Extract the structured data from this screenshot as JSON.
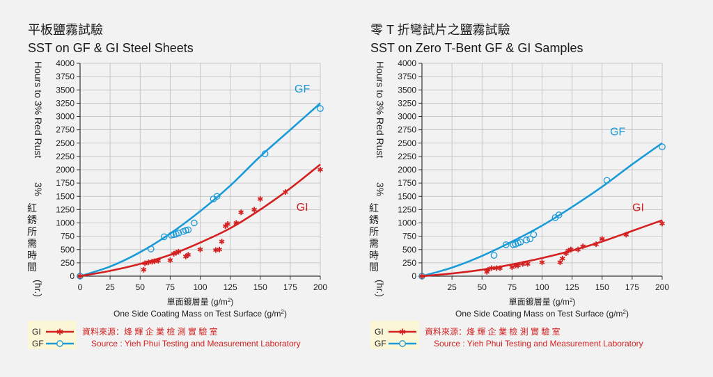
{
  "colors": {
    "gf": "#1a9bd8",
    "gi": "#d42020",
    "grid": "#bbbbbb",
    "legend_bg": "#fbf6d5"
  },
  "chart_data": [
    {
      "type": "scatter",
      "title_zh": "平板鹽霧試驗",
      "title": "SST on GF & GI Steel Sheets",
      "xlabel_zh": "單面鍍層量 (g/m",
      "xlabel_zh_sup": "2",
      "xlabel_zh_end": ")",
      "xlabel": "One Side Coating Mass on Test Surface (g/m",
      "xlabel_sup": "2",
      "xlabel_end": ")",
      "ylabel": "Hours to 3% Red Rust",
      "ylabel_zh": [
        "3%",
        "紅",
        "銹",
        "所",
        "需",
        "時",
        "間",
        "(hr.)"
      ],
      "xlim": [
        0,
        200
      ],
      "ylim": [
        0,
        4000
      ],
      "xticks": [
        "0",
        "25",
        "50",
        "75",
        "100",
        "125",
        "150",
        "175",
        "200"
      ],
      "yticks": [
        "0",
        "250",
        "500",
        "750",
        "1000",
        "1250",
        "1500",
        "1750",
        "2000",
        "2250",
        "2500",
        "2750",
        "3000",
        "3250",
        "3500",
        "3750",
        "4000"
      ],
      "series": [
        {
          "name": "GF",
          "marker": "circle",
          "points": [
            [
              0,
              0
            ],
            [
              59,
              510
            ],
            [
              70,
              740
            ],
            [
              76,
              770
            ],
            [
              78,
              780
            ],
            [
              80,
              790
            ],
            [
              82,
              810
            ],
            [
              86,
              840
            ],
            [
              88,
              860
            ],
            [
              90,
              870
            ],
            [
              95,
              1000
            ],
            [
              111,
              1450
            ],
            [
              114,
              1500
            ],
            [
              154,
              2300
            ],
            [
              200,
              3150
            ]
          ],
          "curve": [
            [
              0,
              0
            ],
            [
              25,
              180
            ],
            [
              50,
              450
            ],
            [
              75,
              800
            ],
            [
              100,
              1220
            ],
            [
              125,
              1700
            ],
            [
              150,
              2250
            ],
            [
              175,
              2750
            ],
            [
              200,
              3250
            ]
          ],
          "label_pos": [
            185,
            3450
          ]
        },
        {
          "name": "GI",
          "marker": "asterisk",
          "points": [
            [
              0,
              0
            ],
            [
              53,
              120
            ],
            [
              54,
              240
            ],
            [
              57,
              260
            ],
            [
              60,
              270
            ],
            [
              62,
              280
            ],
            [
              65,
              290
            ],
            [
              75,
              300
            ],
            [
              78,
              420
            ],
            [
              80,
              440
            ],
            [
              82,
              460
            ],
            [
              88,
              370
            ],
            [
              90,
              400
            ],
            [
              100,
              500
            ],
            [
              113,
              490
            ],
            [
              116,
              500
            ],
            [
              118,
              650
            ],
            [
              121,
              940
            ],
            [
              123,
              980
            ],
            [
              130,
              1000
            ],
            [
              134,
              1200
            ],
            [
              145,
              1250
            ],
            [
              150,
              1450
            ],
            [
              171,
              1580
            ],
            [
              200,
              2000
            ]
          ],
          "curve": [
            [
              0,
              0
            ],
            [
              25,
              100
            ],
            [
              50,
              230
            ],
            [
              75,
              400
            ],
            [
              100,
              630
            ],
            [
              125,
              900
            ],
            [
              150,
              1250
            ],
            [
              175,
              1650
            ],
            [
              200,
              2100
            ]
          ],
          "label_pos": [
            185,
            1230
          ]
        }
      ]
    },
    {
      "type": "scatter",
      "title_zh": "零 T 折彎試片之鹽霧試驗",
      "title": "SST on Zero T-Bent GF & GI Samples",
      "xlabel_zh": "單面鍍層量 (g/m",
      "xlabel_zh_sup": "2",
      "xlabel_zh_end": ")",
      "xlabel": "One Side Coating Mass on Test Surface (g/m",
      "xlabel_sup": "2",
      "xlabel_end": ")",
      "ylabel": "Hours to 3% Red Rust",
      "ylabel_zh": [
        "3%",
        "紅",
        "銹",
        "所",
        "需",
        "時",
        "間",
        "(hr.)"
      ],
      "xlim": [
        0,
        200
      ],
      "ylim": [
        0,
        4000
      ],
      "xticks": [
        "",
        "25",
        "50",
        "75",
        "100",
        "125",
        "150",
        "175",
        "200"
      ],
      "yticks": [
        "0",
        "250",
        "500",
        "750",
        "1000",
        "1250",
        "1500",
        "1750",
        "2000",
        "2250",
        "2500",
        "2750",
        "3000",
        "3250",
        "3500",
        "3750",
        "4000"
      ],
      "series": [
        {
          "name": "GF",
          "marker": "circle",
          "points": [
            [
              0,
              0
            ],
            [
              60,
              390
            ],
            [
              70,
              590
            ],
            [
              76,
              590
            ],
            [
              78,
              600
            ],
            [
              80,
              620
            ],
            [
              82,
              640
            ],
            [
              87,
              680
            ],
            [
              90,
              700
            ],
            [
              93,
              780
            ],
            [
              111,
              1100
            ],
            [
              114,
              1150
            ],
            [
              154,
              1800
            ],
            [
              200,
              2430
            ]
          ],
          "curve": [
            [
              0,
              0
            ],
            [
              25,
              160
            ],
            [
              50,
              380
            ],
            [
              75,
              650
            ],
            [
              100,
              950
            ],
            [
              125,
              1300
            ],
            [
              150,
              1680
            ],
            [
              175,
              2100
            ],
            [
              200,
              2500
            ]
          ],
          "label_pos": [
            163,
            2650
          ]
        },
        {
          "name": "GI",
          "marker": "asterisk",
          "points": [
            [
              0,
              0
            ],
            [
              54,
              80
            ],
            [
              55,
              120
            ],
            [
              58,
              150
            ],
            [
              62,
              150
            ],
            [
              65,
              150
            ],
            [
              75,
              170
            ],
            [
              78,
              200
            ],
            [
              80,
              200
            ],
            [
              84,
              230
            ],
            [
              88,
              230
            ],
            [
              100,
              260
            ],
            [
              115,
              260
            ],
            [
              117,
              330
            ],
            [
              120,
              430
            ],
            [
              122,
              480
            ],
            [
              124,
              500
            ],
            [
              130,
              500
            ],
            [
              134,
              560
            ],
            [
              145,
              600
            ],
            [
              150,
              700
            ],
            [
              170,
              780
            ],
            [
              200,
              990
            ]
          ],
          "curve": [
            [
              0,
              0
            ],
            [
              25,
              50
            ],
            [
              50,
              120
            ],
            [
              75,
              220
            ],
            [
              100,
              340
            ],
            [
              125,
              480
            ],
            [
              150,
              650
            ],
            [
              175,
              850
            ],
            [
              200,
              1050
            ]
          ],
          "label_pos": [
            180,
            1220
          ]
        }
      ]
    }
  ],
  "legends": [
    {
      "items": [
        {
          "label": "GI",
          "series": "GI"
        },
        {
          "label": "GF",
          "series": "GF"
        }
      ],
      "source_zh": "資料來源：烽 輝 企 業 檢 測 實 驗 室",
      "source_en": "Source :  Yieh Phui Testing and Measurement Laboratory"
    },
    {
      "items": [
        {
          "label": "GI",
          "series": "GI"
        },
        {
          "label": "GF",
          "series": "GF"
        }
      ],
      "source_zh": "資料來源：烽 輝 企 業 檢 測 實 驗 室",
      "source_en": "Source :  Yieh Phui Testing and Measurement Laboratory"
    }
  ]
}
